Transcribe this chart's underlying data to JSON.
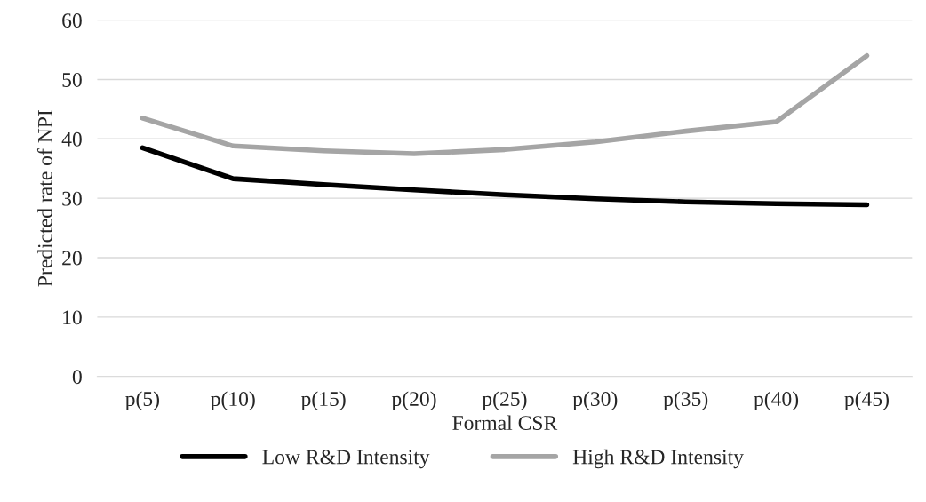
{
  "chart_data": {
    "type": "line",
    "xlabel": "Formal CSR",
    "ylabel": "Predicted rate of NPI",
    "categories": [
      "p(5)",
      "p(10)",
      "p(15)",
      "p(20)",
      "p(25)",
      "p(30)",
      "p(35)",
      "p(40)",
      "p(45)"
    ],
    "series": [
      {
        "name": "Low R&D Intensity",
        "color": "#000000",
        "values": [
          38.5,
          33.3,
          32.3,
          31.4,
          30.6,
          29.9,
          29.4,
          29.1,
          28.9
        ]
      },
      {
        "name": "High R&D Intensity",
        "color": "#a5a5a5",
        "values": [
          43.5,
          38.8,
          38.0,
          37.5,
          38.2,
          39.5,
          41.3,
          42.9,
          54.0
        ]
      }
    ],
    "ylim": [
      0,
      60
    ],
    "yticks": [
      0,
      10,
      20,
      30,
      40,
      50,
      60
    ],
    "grid": "y",
    "legend": "bottom",
    "marker": "none",
    "line_style": "solid"
  }
}
